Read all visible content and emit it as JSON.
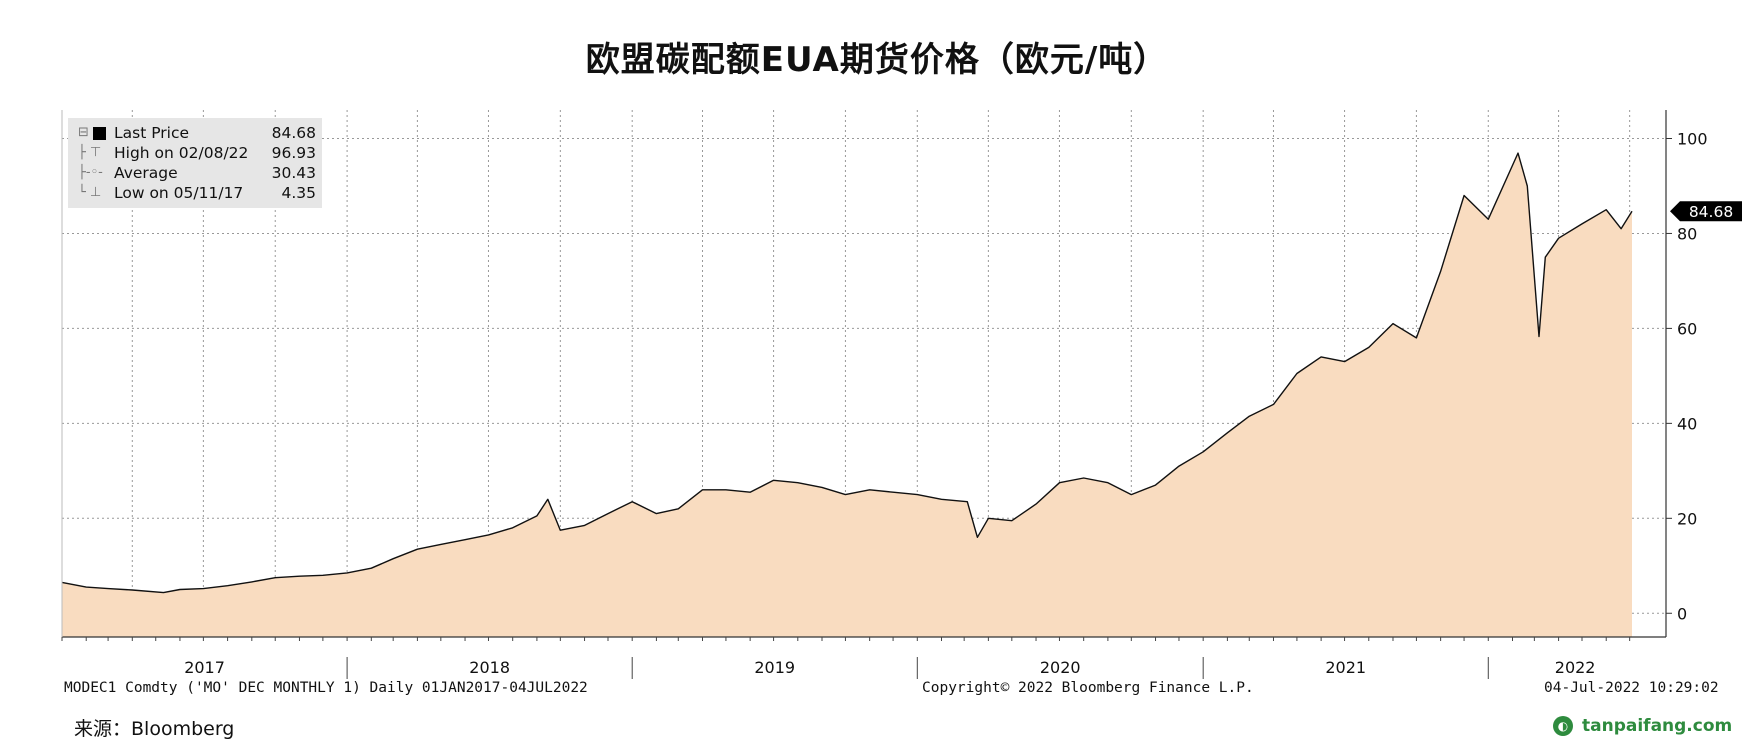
{
  "title": "欧盟碳配额EUA期货价格（欧元/吨）",
  "legend": {
    "last_price_label": "Last Price",
    "last_price_value": "84.68",
    "high_label": "High on 02/08/22",
    "high_value": "96.93",
    "average_label": "Average",
    "average_value": "30.43",
    "low_label": "Low on 05/11/17",
    "low_value": "4.35"
  },
  "footer": {
    "left": "MODEC1 Comdty ('MO' DEC MONTHLY 1)  Daily 01JAN2017-04JUL2022",
    "middle": "Copyright© 2022 Bloomberg Finance L.P.",
    "right": "04-Jul-2022 10:29:02"
  },
  "source": "来源：Bloomberg",
  "watermark": "tanpaifang.com",
  "colors": {
    "area_fill": "#f9dcc0",
    "line": "#111111",
    "grid": "#999999",
    "legend_bg": "#e6e6e6",
    "watermark": "#2e8b3e"
  },
  "chart_data": {
    "type": "area",
    "title": "欧盟碳配额EUA期货价格（欧元/吨）",
    "xlabel": "",
    "ylabel": "",
    "x_range": [
      "2017-01-01",
      "2022-07-04"
    ],
    "ylim": [
      -5,
      106
    ],
    "y_ticks": [
      0,
      20,
      40,
      60,
      80,
      100
    ],
    "x_tick_labels": [
      "2017",
      "2018",
      "2019",
      "2020",
      "2021",
      "2022"
    ],
    "grid": true,
    "legend_position": "top-left",
    "last_value_label": "84.68",
    "series": [
      {
        "name": "Last Price",
        "x": [
          "2017-01-01",
          "2017-02-01",
          "2017-03-01",
          "2017-04-01",
          "2017-05-11",
          "2017-06-01",
          "2017-07-01",
          "2017-08-01",
          "2017-09-01",
          "2017-10-01",
          "2017-11-01",
          "2017-12-01",
          "2018-01-01",
          "2018-02-01",
          "2018-03-01",
          "2018-04-01",
          "2018-05-01",
          "2018-06-01",
          "2018-07-01",
          "2018-08-01",
          "2018-09-01",
          "2018-09-15",
          "2018-10-01",
          "2018-11-01",
          "2018-12-01",
          "2019-01-01",
          "2019-02-01",
          "2019-03-01",
          "2019-04-01",
          "2019-05-01",
          "2019-06-01",
          "2019-07-01",
          "2019-08-01",
          "2019-09-01",
          "2019-10-01",
          "2019-11-01",
          "2019-12-01",
          "2020-01-01",
          "2020-02-01",
          "2020-03-05",
          "2020-03-18",
          "2020-04-01",
          "2020-05-01",
          "2020-06-01",
          "2020-07-01",
          "2020-08-01",
          "2020-09-01",
          "2020-10-01",
          "2020-11-01",
          "2020-12-01",
          "2021-01-01",
          "2021-02-01",
          "2021-03-01",
          "2021-04-01",
          "2021-05-01",
          "2021-06-01",
          "2021-07-01",
          "2021-08-01",
          "2021-09-01",
          "2021-10-01",
          "2021-11-01",
          "2021-12-01",
          "2022-01-01",
          "2022-02-08",
          "2022-02-20",
          "2022-03-07",
          "2022-03-15",
          "2022-04-01",
          "2022-05-01",
          "2022-06-01",
          "2022-06-20",
          "2022-07-04"
        ],
        "values": [
          6.5,
          5.5,
          5.2,
          4.9,
          4.35,
          5.0,
          5.2,
          5.8,
          6.6,
          7.5,
          7.8,
          8.0,
          8.5,
          9.5,
          11.5,
          13.5,
          14.5,
          15.5,
          16.5,
          18.0,
          20.5,
          24.0,
          17.5,
          18.5,
          21.0,
          23.5,
          21.0,
          22.0,
          26.0,
          26.0,
          25.5,
          28.0,
          27.5,
          26.5,
          25.0,
          26.0,
          25.5,
          25.0,
          24.0,
          23.5,
          16.0,
          20.0,
          19.5,
          23.0,
          27.5,
          28.5,
          27.5,
          25.0,
          27.0,
          31.0,
          34.0,
          38.0,
          41.5,
          44.0,
          50.5,
          54.0,
          53.0,
          56.0,
          61.0,
          58.0,
          72.0,
          88.0,
          83.0,
          96.93,
          90.0,
          58.3,
          75.0,
          79.0,
          82.0,
          85.0,
          81.0,
          84.68
        ]
      }
    ]
  }
}
